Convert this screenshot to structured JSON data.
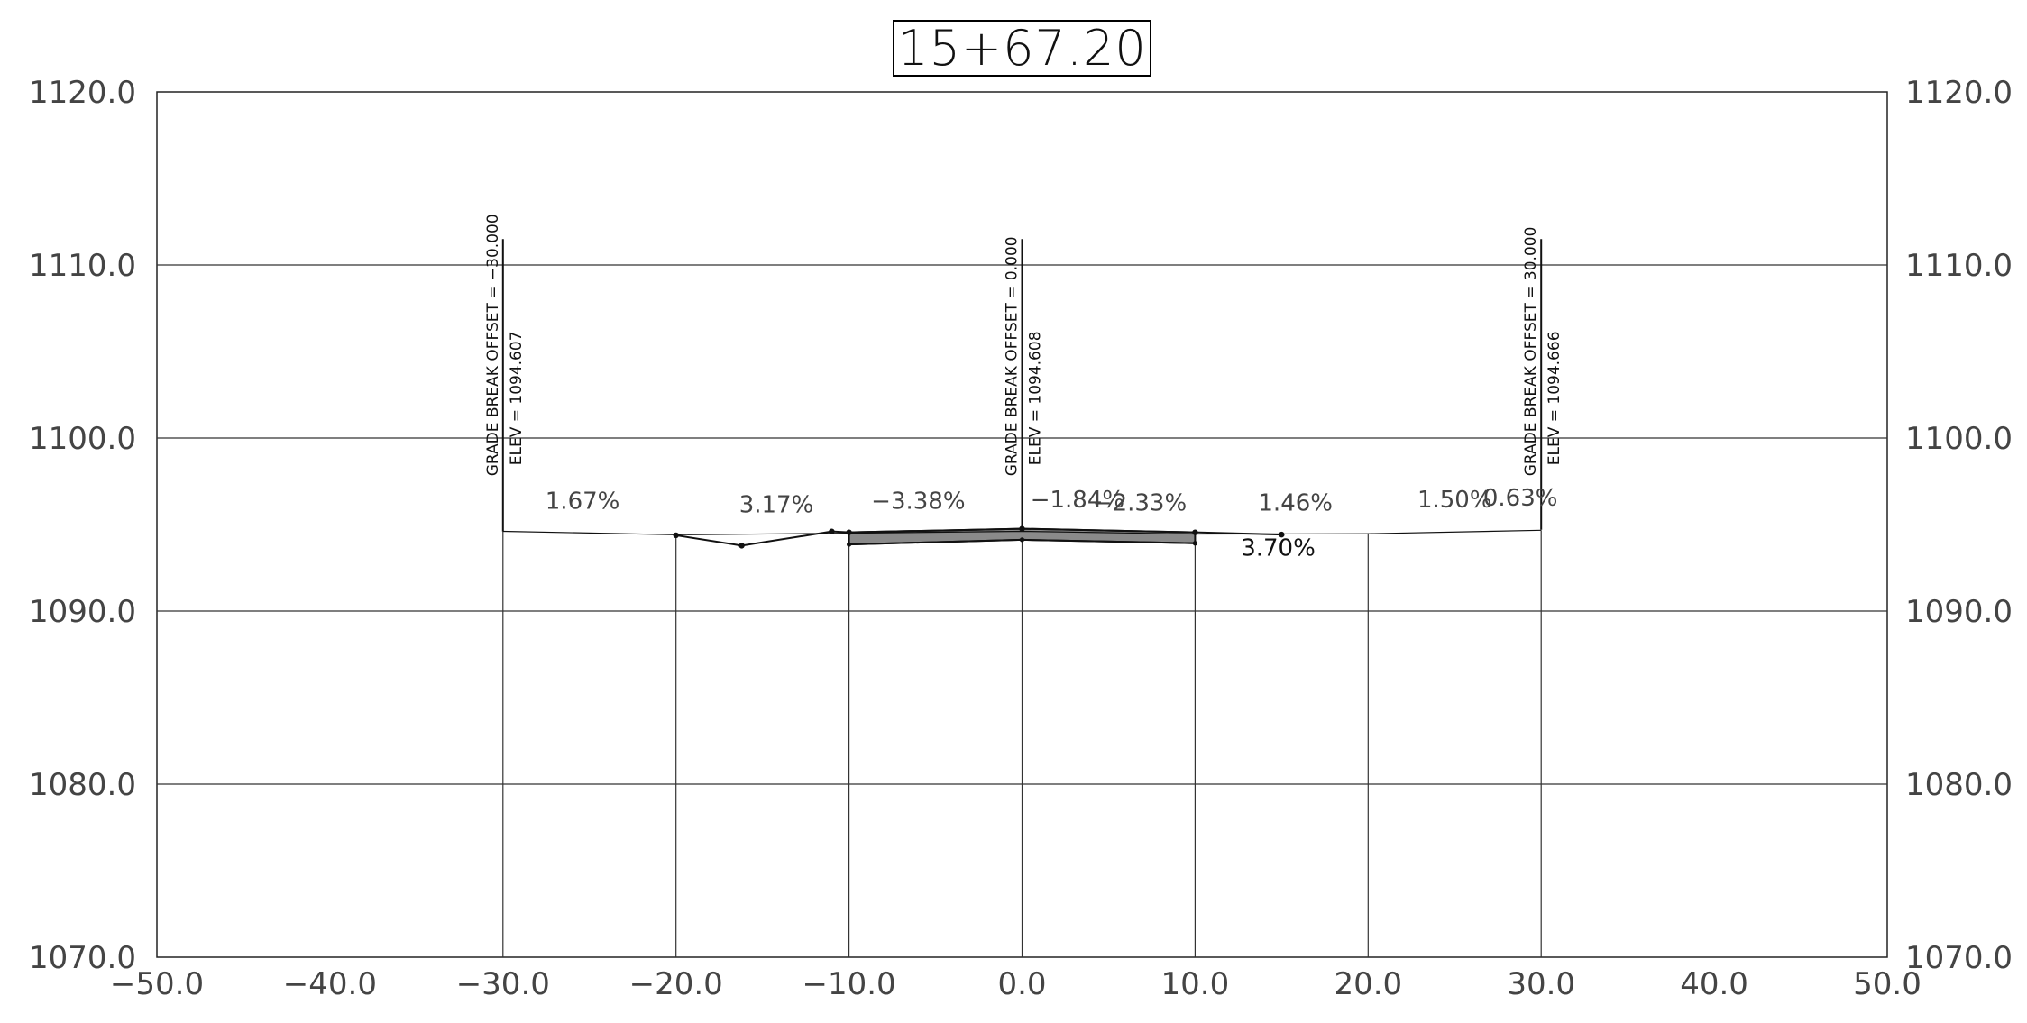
{
  "station": "15+67.20",
  "chart_data": {
    "type": "line",
    "title": "15+67.20",
    "xlabel": "",
    "ylabel": "",
    "xlim": [
      -50,
      50
    ],
    "ylim": [
      1070,
      1120
    ],
    "grid": true,
    "x_ticks": [
      -50,
      -40,
      -30,
      -20,
      -10,
      0,
      10,
      20,
      30,
      40,
      50
    ],
    "x_tick_labels": [
      "−50.0",
      "−40.0",
      "−30.0",
      "−20.0",
      "−10.0",
      "0.0",
      "10.0",
      "20.0",
      "30.0",
      "40.0",
      "50.0"
    ],
    "y_ticks": [
      1070,
      1080,
      1090,
      1100,
      1110,
      1120
    ],
    "y_tick_labels": [
      "1070.0",
      "1080.0",
      "1090.0",
      "1100.0",
      "1110.0",
      "1120.0"
    ],
    "vertical_lines": [
      {
        "x": -30,
        "y_bottom": 1070,
        "y_top": 1094.6
      },
      {
        "x": -20,
        "y_bottom": 1070,
        "y_top": 1094.4
      },
      {
        "x": -10,
        "y_bottom": 1070,
        "y_top": 1093.8
      },
      {
        "x": 0,
        "y_bottom": 1070,
        "y_top": 1094.1
      },
      {
        "x": 10,
        "y_bottom": 1070,
        "y_top": 1094.0
      },
      {
        "x": 20,
        "y_bottom": 1070,
        "y_top": 1094.5
      },
      {
        "x": 30,
        "y_bottom": 1070,
        "y_top": 1094.67
      }
    ],
    "series": [
      {
        "role": "existing-ground",
        "x": [
          -30,
          -20,
          -10,
          0,
          10,
          20,
          30
        ],
        "y": [
          1094.61,
          1094.41,
          1094.5,
          1094.61,
          1094.45,
          1094.47,
          1094.67
        ]
      },
      {
        "role": "proposed-section",
        "x": [
          -20,
          -16.2,
          -11,
          -10,
          0,
          10,
          15
        ],
        "y": [
          1094.38,
          1093.78,
          1094.6,
          1094.55,
          1094.76,
          1094.55,
          1094.42
        ]
      },
      {
        "role": "pavement-bottom",
        "x": [
          -10,
          0,
          10
        ],
        "y": [
          1093.85,
          1094.12,
          1093.92
        ]
      }
    ],
    "grade_breaks": [
      {
        "x": -30,
        "y_base": 1094.6,
        "y_top": 1111.5,
        "offset_label": "GRADE BREAK OFFSET = −30.000",
        "elev_label": "ELEV = 1094.607"
      },
      {
        "x": 0,
        "y_base": 1094.8,
        "y_top": 1111.5,
        "offset_label": "GRADE BREAK OFFSET = 0.000",
        "elev_label": "ELEV = 1094.608"
      },
      {
        "x": 30,
        "y_base": 1094.7,
        "y_top": 1111.5,
        "offset_label": "GRADE BREAK OFFSET = 30.000",
        "elev_label": "ELEV = 1094.666"
      }
    ],
    "slope_labels": [
      {
        "text": "1.67%",
        "x": -25.4,
        "y": 1095.9
      },
      {
        "text": "3.17%",
        "x": -14.2,
        "y": 1095.7
      },
      {
        "text": "−3.38%",
        "x": -6.0,
        "y": 1095.9
      },
      {
        "text": "−1.84%",
        "x": 3.2,
        "y": 1096.0
      },
      {
        "text": "−2.33%",
        "x": 6.8,
        "y": 1095.8
      },
      {
        "text": "1.46%",
        "x": 15.8,
        "y": 1095.8
      },
      {
        "text": "1.50%",
        "x": 25.0,
        "y": 1096.0
      },
      {
        "text": "0.63%",
        "x": 28.8,
        "y": 1096.1
      }
    ],
    "annotations": [
      {
        "text": "3.70%",
        "x": 14.8,
        "y": 1093.2
      }
    ]
  }
}
